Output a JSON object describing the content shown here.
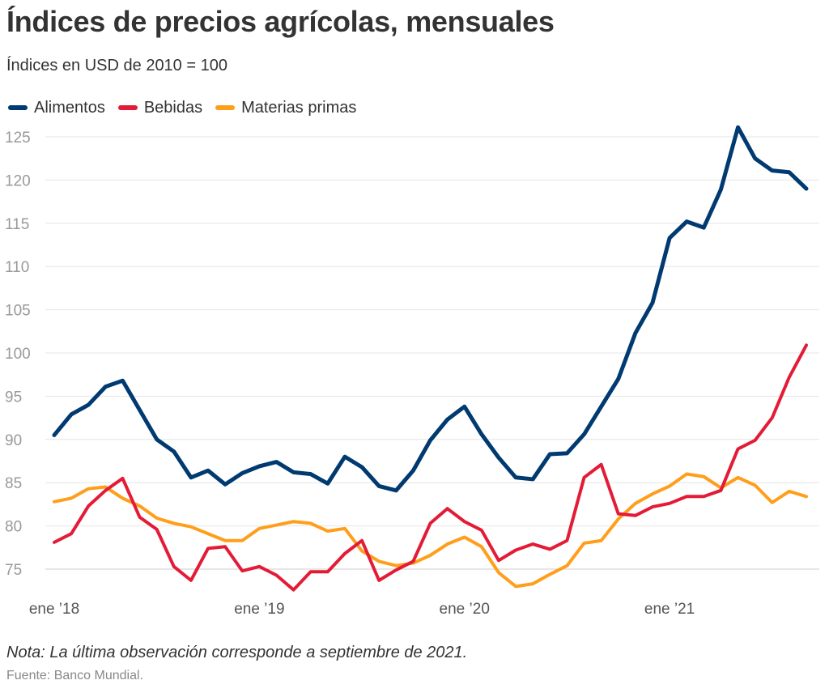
{
  "header": {
    "title": "Índices de precios agrícolas, mensuales",
    "subtitle": "Índices en USD de 2010 = 100"
  },
  "legend": [
    {
      "label": "Alimentos",
      "color": "#003A70"
    },
    {
      "label": "Bebidas",
      "color": "#E31B36"
    },
    {
      "label": "Materias primas",
      "color": "#FF9E1B"
    }
  ],
  "footer": {
    "note": "Nota: La última observación corresponde a septiembre de 2021.",
    "source": "Fuente: Banco Mundial."
  },
  "chart_data": {
    "type": "line",
    "x_tick_labels": [
      "ene ’18",
      "ene ’19",
      "ene ’20",
      "ene ’21"
    ],
    "x": [
      "2018-01",
      "2018-02",
      "2018-03",
      "2018-04",
      "2018-05",
      "2018-06",
      "2018-07",
      "2018-08",
      "2018-09",
      "2018-10",
      "2018-11",
      "2018-12",
      "2019-01",
      "2019-02",
      "2019-03",
      "2019-04",
      "2019-05",
      "2019-06",
      "2019-07",
      "2019-08",
      "2019-09",
      "2019-10",
      "2019-11",
      "2019-12",
      "2020-01",
      "2020-02",
      "2020-03",
      "2020-04",
      "2020-05",
      "2020-06",
      "2020-07",
      "2020-08",
      "2020-09",
      "2020-10",
      "2020-11",
      "2020-12",
      "2021-01",
      "2021-02",
      "2021-03",
      "2021-04",
      "2021-05",
      "2021-06",
      "2021-07",
      "2021-08",
      "2021-09"
    ],
    "ylim": [
      72,
      127
    ],
    "yticks": [
      75,
      80,
      85,
      90,
      95,
      100,
      105,
      110,
      115,
      120,
      125
    ],
    "grid": true,
    "series": [
      {
        "name": "Alimentos",
        "color": "#003A70",
        "values": [
          90.5,
          92.9,
          94.0,
          96.1,
          96.8,
          93.4,
          90.0,
          88.6,
          85.6,
          86.4,
          84.8,
          86.1,
          86.9,
          87.4,
          86.2,
          86.0,
          84.9,
          88.0,
          86.8,
          84.6,
          84.1,
          86.4,
          89.9,
          92.3,
          93.8,
          90.6,
          87.9,
          85.6,
          85.4,
          88.3,
          88.4,
          90.6,
          93.8,
          97.0,
          102.3,
          105.8,
          113.3,
          115.2,
          114.5,
          118.9,
          126.1,
          122.5,
          121.1,
          120.9,
          119.0
        ]
      },
      {
        "name": "Bebidas",
        "color": "#E31B36",
        "values": [
          78.1,
          79.1,
          82.3,
          84.1,
          85.5,
          81.0,
          79.6,
          75.3,
          73.7,
          77.4,
          77.6,
          74.8,
          75.3,
          74.3,
          72.6,
          74.7,
          74.7,
          76.8,
          78.3,
          73.7,
          74.9,
          75.9,
          80.3,
          82.0,
          80.5,
          79.5,
          76.0,
          77.2,
          77.9,
          77.3,
          78.3,
          85.6,
          87.1,
          81.4,
          81.2,
          82.2,
          82.6,
          83.4,
          83.4,
          84.1,
          88.9,
          89.9,
          92.5,
          97.2,
          100.9
        ]
      },
      {
        "name": "Materias primas",
        "color": "#FF9E1B",
        "values": [
          82.8,
          83.2,
          84.3,
          84.5,
          83.2,
          82.3,
          80.9,
          80.3,
          79.9,
          79.1,
          78.3,
          78.3,
          79.7,
          80.1,
          80.5,
          80.3,
          79.4,
          79.7,
          77.1,
          75.9,
          75.4,
          75.7,
          76.6,
          77.9,
          78.7,
          77.6,
          74.6,
          73.0,
          73.3,
          74.4,
          75.4,
          78.0,
          78.3,
          80.8,
          82.6,
          83.7,
          84.6,
          86.0,
          85.7,
          84.4,
          85.6,
          84.7,
          82.7,
          84.0,
          83.4
        ]
      }
    ]
  }
}
